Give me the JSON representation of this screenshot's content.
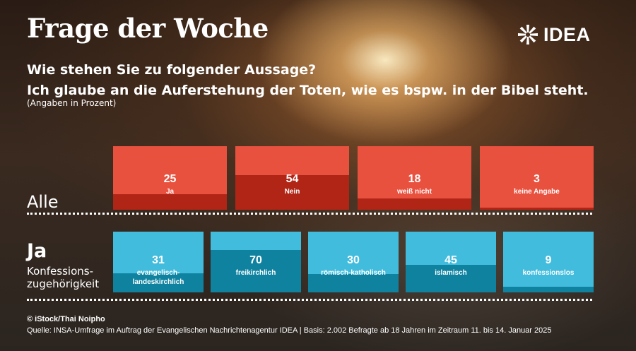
{
  "header": {
    "title": "Frage der Woche",
    "logo_text": "IDEA",
    "question_line1": "Wie stehen Sie zu folgender Aussage?",
    "question_line2": "Ich glaube an die Auferstehung der Toten, wie es bspw. in der Bibel steht.",
    "unit_note": "(Angaben in Prozent)"
  },
  "rows": {
    "alle_label": "Alle",
    "ja_label": "Ja",
    "ja_sublabel_line1": "Konfessions-",
    "ja_sublabel_line2": "zugehörigkeit"
  },
  "colors": {
    "alle_light": "#E9513F",
    "alle_dark": "#B02516",
    "ja_light": "#42BCDD",
    "ja_dark": "#0F82A0"
  },
  "chart_data": [
    {
      "type": "bar",
      "group": "Alle",
      "categories": [
        "Ja",
        "Nein",
        "weiß nicht",
        "keine Angabe"
      ],
      "values": [
        25,
        54,
        18,
        3
      ],
      "ylim": [
        0,
        100
      ]
    },
    {
      "type": "bar",
      "group": "Ja",
      "categories": [
        "evangelisch-landeskirchlich",
        "freikirchlich",
        "römisch-katholisch",
        "islamisch",
        "konfessionslos"
      ],
      "category_lines": [
        [
          "evangelisch-",
          "landeskirchlich"
        ],
        [
          "freikirchlich"
        ],
        [
          "römisch-katholisch"
        ],
        [
          "islamisch"
        ],
        [
          "konfessionslos"
        ]
      ],
      "values": [
        31,
        70,
        30,
        45,
        9
      ],
      "ylim": [
        0,
        100
      ]
    }
  ],
  "footer": {
    "credit": "© iStock/Thai Noipho",
    "source": "Quelle: INSA-Umfrage im Auftrag der Evangelischen Nachrichtenagentur IDEA | Basis: 2.002 Befragte ab 18 Jahren im Zeitraum 11. bis 14. Januar 2025"
  }
}
